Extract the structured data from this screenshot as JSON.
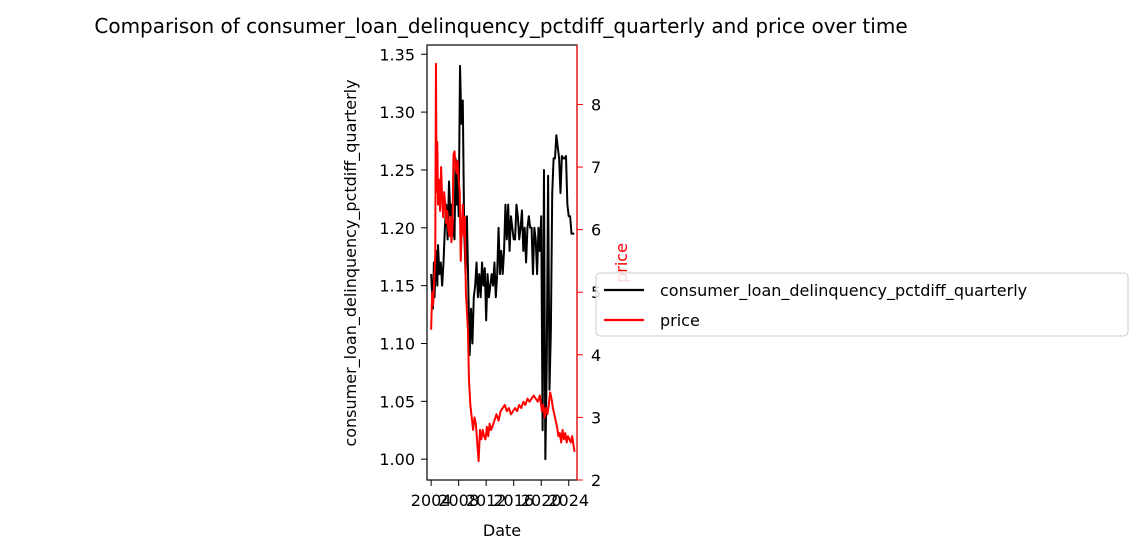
{
  "chart_data": {
    "type": "line",
    "title": "Comparison of consumer_loan_delinquency_pctdiff_quarterly and price over time",
    "xlabel": "Date",
    "ylabel_left": "consumer_loan_delinquency_pctdiff_quarterly",
    "ylabel_right": "price",
    "xlim": [
      2003.4,
      2025.2
    ],
    "ylim_left": [
      0.982,
      1.358
    ],
    "ylim_right": [
      2.0,
      8.95
    ],
    "x_ticks": [
      "2004",
      "2008",
      "2012",
      "2016",
      "2020",
      "2024"
    ],
    "x_tick_values": [
      2004,
      2008,
      2012,
      2016,
      2020,
      2024
    ],
    "y_ticks_left": [
      "1.00",
      "1.05",
      "1.10",
      "1.15",
      "1.20",
      "1.25",
      "1.30",
      "1.35"
    ],
    "y_tick_values_left": [
      1.0,
      1.05,
      1.1,
      1.15,
      1.2,
      1.25,
      1.3,
      1.35
    ],
    "y_ticks_right": [
      "2",
      "3",
      "4",
      "5",
      "6",
      "7",
      "8"
    ],
    "y_tick_values_right": [
      2,
      3,
      4,
      5,
      6,
      7,
      8
    ],
    "grid": false,
    "legend_position": "center-right (outside axes)",
    "series": [
      {
        "name": "consumer_loan_delinquency_pctdiff_quarterly",
        "axis": "left",
        "color": "#000000",
        "x": [
          2004.0,
          2004.25,
          2004.4,
          2004.5,
          2004.7,
          2004.9,
          2005.0,
          2005.2,
          2005.4,
          2005.6,
          2005.8,
          2006.0,
          2006.2,
          2006.4,
          2006.6,
          2006.8,
          2007.0,
          2007.2,
          2007.4,
          2007.55,
          2007.7,
          2007.85,
          2008.0,
          2008.2,
          2008.4,
          2008.6,
          2008.8,
          2009.0,
          2009.2,
          2009.4,
          2009.6,
          2009.8,
          2010.0,
          2010.2,
          2010.4,
          2010.6,
          2010.8,
          2011.0,
          2011.2,
          2011.4,
          2011.6,
          2011.8,
          2012.0,
          2012.2,
          2012.4,
          2012.6,
          2012.8,
          2013.0,
          2013.2,
          2013.4,
          2013.6,
          2013.8,
          2014.0,
          2014.2,
          2014.4,
          2014.6,
          2014.8,
          2015.0,
          2015.2,
          2015.4,
          2015.6,
          2015.8,
          2016.0,
          2016.2,
          2016.4,
          2016.6,
          2016.8,
          2017.0,
          2017.2,
          2017.4,
          2017.6,
          2017.8,
          2018.0,
          2018.2,
          2018.4,
          2018.6,
          2018.8,
          2019.0,
          2019.2,
          2019.4,
          2019.6,
          2019.8,
          2020.0,
          2020.2,
          2020.4,
          2020.6,
          2020.8,
          2021.0,
          2021.2,
          2021.4,
          2021.6,
          2021.8,
          2022.0,
          2022.2,
          2022.4,
          2022.6,
          2022.8,
          2023.0,
          2023.2,
          2023.4,
          2023.6,
          2023.8,
          2024.0,
          2024.2,
          2024.4,
          2024.6,
          2024.8
        ],
        "y": [
          1.16,
          1.13,
          1.17,
          1.14,
          1.18,
          1.15,
          1.185,
          1.16,
          1.17,
          1.15,
          1.17,
          1.2,
          1.22,
          1.19,
          1.24,
          1.21,
          1.22,
          1.2,
          1.19,
          1.26,
          1.22,
          1.25,
          1.21,
          1.34,
          1.29,
          1.31,
          1.2,
          1.16,
          1.21,
          1.15,
          1.09,
          1.13,
          1.1,
          1.14,
          1.15,
          1.17,
          1.14,
          1.16,
          1.14,
          1.17,
          1.15,
          1.165,
          1.12,
          1.16,
          1.14,
          1.15,
          1.16,
          1.15,
          1.17,
          1.14,
          1.16,
          1.2,
          1.16,
          1.18,
          1.16,
          1.18,
          1.22,
          1.19,
          1.22,
          1.18,
          1.21,
          1.2,
          1.19,
          1.19,
          1.22,
          1.21,
          1.19,
          1.2,
          1.215,
          1.18,
          1.2,
          1.17,
          1.2,
          1.21,
          1.2,
          1.2,
          1.16,
          1.2,
          1.19,
          1.16,
          1.2,
          1.18,
          1.21,
          1.025,
          1.25,
          1.0,
          1.08,
          1.245,
          1.06,
          1.11,
          1.23,
          1.26,
          1.26,
          1.28,
          1.27,
          1.26,
          1.23,
          1.262,
          1.26,
          1.26,
          1.262,
          1.22,
          1.21,
          1.21,
          1.195,
          1.195,
          1.195
        ]
      },
      {
        "name": "price",
        "axis": "right",
        "color": "#ff0000",
        "x": [
          2004.0,
          2004.15,
          2004.3,
          2004.45,
          2004.6,
          2004.7,
          2004.8,
          2004.9,
          2005.0,
          2005.15,
          2005.3,
          2005.45,
          2005.6,
          2005.75,
          2005.9,
          2006.05,
          2006.2,
          2006.35,
          2006.5,
          2006.65,
          2006.8,
          2006.95,
          2007.1,
          2007.25,
          2007.4,
          2007.55,
          2007.7,
          2007.85,
          2008.0,
          2008.15,
          2008.3,
          2008.45,
          2008.6,
          2008.75,
          2008.9,
          2009.05,
          2009.2,
          2009.35,
          2009.5,
          2009.7,
          2009.9,
          2010.1,
          2010.3,
          2010.5,
          2010.7,
          2010.9,
          2011.1,
          2011.3,
          2011.5,
          2011.7,
          2011.9,
          2012.1,
          2012.3,
          2012.5,
          2012.7,
          2012.9,
          2013.2,
          2013.5,
          2013.8,
          2014.1,
          2014.4,
          2014.7,
          2015.0,
          2015.3,
          2015.6,
          2015.9,
          2016.2,
          2016.5,
          2016.8,
          2017.1,
          2017.4,
          2017.7,
          2018.0,
          2018.3,
          2018.6,
          2018.9,
          2019.2,
          2019.5,
          2019.8,
          2020.1,
          2020.3,
          2020.5,
          2020.7,
          2020.9,
          2021.1,
          2021.3,
          2021.5,
          2021.7,
          2021.9,
          2022.1,
          2022.3,
          2022.5,
          2022.7,
          2022.9,
          2023.1,
          2023.3,
          2023.5,
          2023.7,
          2023.9,
          2024.1,
          2024.3,
          2024.5,
          2024.7,
          2024.85
        ],
        "y": [
          4.4,
          5.0,
          4.8,
          5.2,
          5.6,
          8.65,
          6.6,
          7.4,
          6.4,
          6.8,
          6.3,
          7.0,
          6.5,
          6.2,
          6.6,
          6.4,
          6.1,
          6.3,
          6.0,
          5.9,
          6.2,
          5.8,
          6.0,
          7.2,
          7.25,
          7.0,
          6.9,
          7.1,
          6.8,
          6.6,
          5.5,
          6.0,
          6.4,
          5.9,
          6.2,
          5.0,
          4.7,
          4.4,
          3.6,
          3.2,
          3.0,
          2.8,
          3.0,
          2.9,
          2.6,
          2.3,
          2.8,
          2.65,
          2.8,
          2.7,
          2.65,
          2.85,
          2.7,
          2.9,
          2.8,
          2.85,
          2.95,
          3.05,
          2.95,
          3.1,
          3.15,
          3.2,
          3.1,
          3.15,
          3.05,
          3.1,
          3.15,
          3.1,
          3.2,
          3.15,
          3.25,
          3.2,
          3.3,
          3.25,
          3.3,
          3.35,
          3.3,
          3.25,
          3.35,
          3.1,
          3.2,
          3.0,
          3.15,
          3.05,
          3.2,
          3.4,
          3.3,
          3.15,
          3.05,
          2.95,
          2.85,
          2.7,
          2.75,
          2.6,
          2.8,
          2.65,
          2.75,
          2.6,
          2.7,
          2.65,
          2.6,
          2.7,
          2.55,
          2.45
        ]
      }
    ]
  }
}
